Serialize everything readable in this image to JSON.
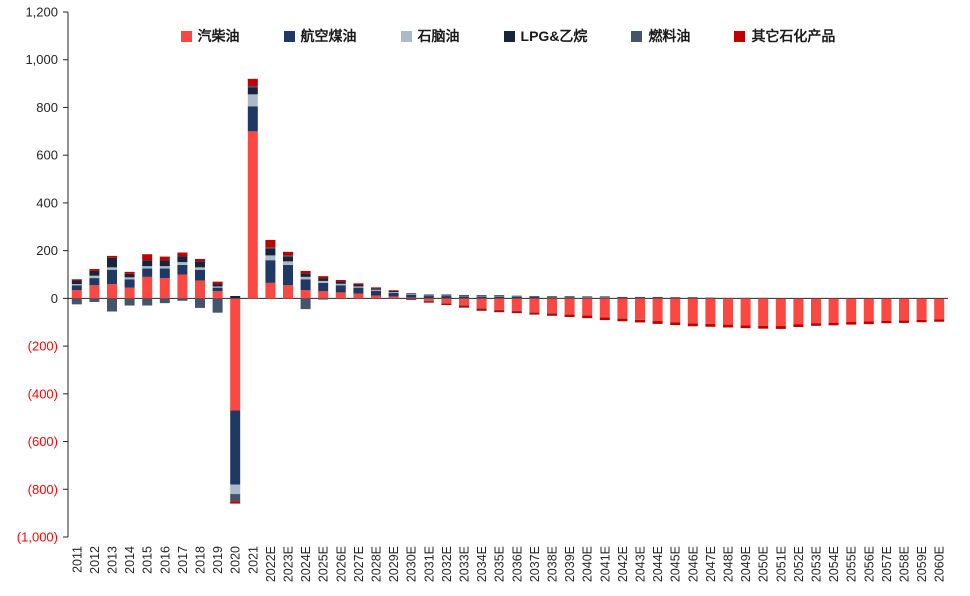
{
  "chart_data": {
    "type": "bar",
    "stacked": true,
    "title": "",
    "xlabel": "",
    "ylabel": "",
    "ylim": [
      -1000,
      1200
    ],
    "ytick_step": 200,
    "grid": false,
    "legend_position": "top-center",
    "axis_color": "#262626",
    "negative_tick_color": "#FF0000",
    "categories": [
      "2011",
      "2012",
      "2013",
      "2014",
      "2015",
      "2016",
      "2017",
      "2018",
      "2019",
      "2020",
      "2021",
      "2022E",
      "2023E",
      "2024E",
      "2025E",
      "2026E",
      "2027E",
      "2028E",
      "2029E",
      "2030E",
      "2031E",
      "2032E",
      "2033E",
      "2034E",
      "2035E",
      "2036E",
      "2037E",
      "2038E",
      "2039E",
      "2040E",
      "2041E",
      "2042E",
      "2043E",
      "2044E",
      "2045E",
      "2046E",
      "2047E",
      "2048E",
      "2049E",
      "2050E",
      "2051E",
      "2052E",
      "2053E",
      "2054E",
      "2055E",
      "2056E",
      "2057E",
      "2058E",
      "2059E",
      "2060E"
    ],
    "series": [
      {
        "name": "汽柴油",
        "color": "#FB4842",
        "values": [
          35,
          55,
          60,
          45,
          90,
          85,
          100,
          75,
          30,
          -470,
          700,
          65,
          55,
          35,
          30,
          25,
          20,
          12,
          8,
          3,
          -10,
          -20,
          -30,
          -42,
          -48,
          -52,
          -58,
          -62,
          -68,
          -72,
          -80,
          -85,
          -90,
          -95,
          -100,
          -105,
          -107,
          -110,
          -113,
          -115,
          -116,
          -108,
          -104,
          -102,
          -99,
          -97,
          -94,
          -93,
          -90,
          -88
        ]
      },
      {
        "name": "航空煤油",
        "color": "#1F3864",
        "values": [
          20,
          30,
          60,
          35,
          35,
          40,
          40,
          45,
          15,
          -310,
          105,
          95,
          85,
          45,
          35,
          30,
          25,
          20,
          15,
          12,
          10,
          10,
          9,
          8,
          8,
          7,
          7,
          6,
          6,
          5,
          5,
          4,
          4,
          4,
          3,
          3,
          3,
          2,
          2,
          2,
          1,
          1,
          1,
          1,
          1,
          1,
          1,
          1,
          1,
          1
        ]
      },
      {
        "name": "石脑油",
        "color": "#ACB9CA",
        "values": [
          5,
          10,
          10,
          8,
          10,
          10,
          12,
          10,
          5,
          -40,
          50,
          20,
          15,
          10,
          8,
          6,
          5,
          4,
          3,
          2,
          2,
          2,
          2,
          2,
          2,
          1,
          1,
          1,
          1,
          1,
          1,
          1,
          1,
          1,
          1,
          1,
          0,
          0,
          0,
          0,
          0,
          0,
          0,
          0,
          0,
          0,
          0,
          0,
          0,
          0
        ]
      },
      {
        "name": "LPG&乙烷",
        "color": "#16243C",
        "values": [
          15,
          20,
          40,
          15,
          25,
          25,
          25,
          25,
          10,
          10,
          30,
          30,
          20,
          15,
          12,
          10,
          8,
          6,
          5,
          4,
          4,
          4,
          3,
          3,
          3,
          3,
          2,
          2,
          2,
          2,
          2,
          1,
          1,
          1,
          1,
          1,
          0,
          0,
          0,
          0,
          0,
          0,
          0,
          0,
          0,
          0,
          0,
          0,
          0,
          0
        ]
      },
      {
        "name": "燃料油",
        "color": "#44546A",
        "values": [
          -25,
          -15,
          -55,
          -30,
          -30,
          -20,
          -10,
          -40,
          -60,
          -30,
          5,
          5,
          5,
          -45,
          -5,
          -3,
          -3,
          -2,
          -2,
          -4,
          -3,
          -2,
          -2,
          -2,
          -2,
          -2,
          -2,
          -2,
          -1,
          -1,
          -1,
          -1,
          -1,
          -1,
          -1,
          -1,
          -1,
          0,
          0,
          0,
          0,
          0,
          0,
          0,
          0,
          0,
          0,
          0,
          0,
          0
        ]
      },
      {
        "name": "其它石化产品",
        "color": "#C00000",
        "values": [
          5,
          8,
          8,
          8,
          25,
          15,
          15,
          10,
          10,
          -10,
          30,
          30,
          15,
          10,
          8,
          6,
          5,
          4,
          3,
          -3,
          -5,
          -6,
          -7,
          -8,
          -8,
          -8,
          -8,
          -9,
          -9,
          -10,
          -10,
          -10,
          -10,
          -11,
          -11,
          -11,
          -11,
          -12,
          -12,
          -12,
          -12,
          -12,
          -11,
          -11,
          -11,
          -11,
          -10,
          -10,
          -10,
          -10
        ]
      }
    ]
  }
}
